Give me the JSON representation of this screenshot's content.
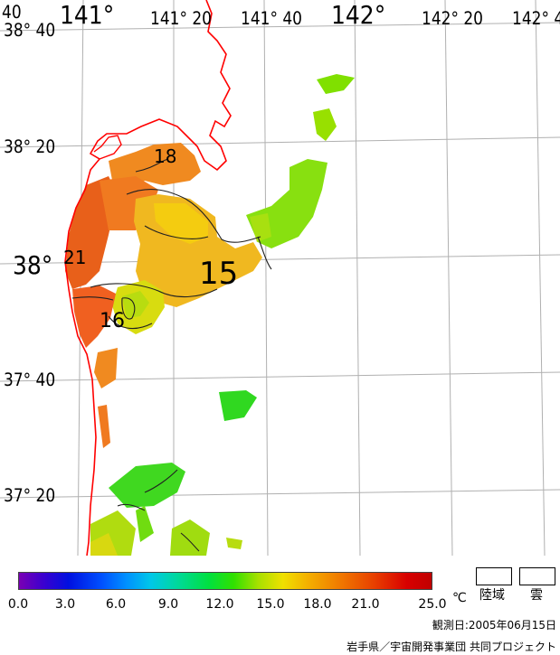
{
  "map": {
    "lon_labels": [
      "141°",
      "141° 20",
      "141° 40",
      "142°",
      "142° 20",
      "142° 4"
    ],
    "lon_label_top_left": "40",
    "lat_labels": [
      "38° 40",
      "38° 20",
      "38°",
      "37° 40",
      "37° 20"
    ],
    "contour_labels": [
      "18",
      "21",
      "15",
      "16"
    ],
    "coastline_color": "#ff0000",
    "grid_color": "#b0b0b0",
    "land_fill_color": "#ffffff"
  },
  "legend": {
    "unit": "℃",
    "ticks": [
      "0.0",
      "3.0",
      "6.0",
      "9.0",
      "12.0",
      "15.0",
      "18.0",
      "21.0",
      "25.0"
    ],
    "land_label": "陸域",
    "cloud_label": "雲"
  },
  "footer": {
    "observation_date": "観測日:2005年06月15日",
    "credit": "岩手県／宇宙開発事業団 共同プロジェクト"
  }
}
